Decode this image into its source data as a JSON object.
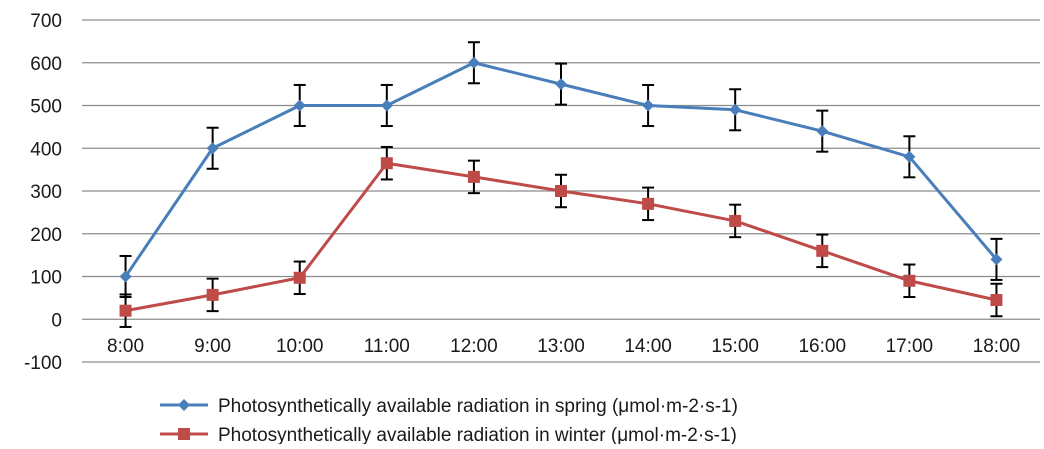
{
  "chart_data": {
    "type": "line",
    "title": "",
    "xlabel": "",
    "ylabel": "",
    "categories": [
      "8:00",
      "9:00",
      "10:00",
      "11:00",
      "12:00",
      "13:00",
      "14:00",
      "15:00",
      "16:00",
      "17:00",
      "18:00"
    ],
    "ylim": [
      -100,
      700
    ],
    "yticks": [
      -100,
      0,
      100,
      200,
      300,
      400,
      500,
      600,
      700
    ],
    "grid": true,
    "legend_position": "bottom-center",
    "series": [
      {
        "name": "Photosynthetically available radiation in spring (μmol·m-2·s-1)",
        "color": "#4A7EBB",
        "marker": "diamond",
        "values": [
          100,
          400,
          500,
          500,
          600,
          550,
          500,
          490,
          440,
          380,
          140
        ],
        "errors": [
          48,
          48,
          48,
          48,
          48,
          48,
          48,
          48,
          48,
          48,
          48
        ]
      },
      {
        "name": "Photosynthetically available radiation in winter (μmol·m-2·s-1)",
        "color": "#BE4B48",
        "marker": "square",
        "values": [
          20,
          57,
          97,
          365,
          333,
          300,
          270,
          230,
          160,
          90,
          45
        ],
        "errors": [
          38,
          38,
          38,
          38,
          38,
          38,
          38,
          38,
          38,
          38,
          38
        ]
      }
    ]
  }
}
